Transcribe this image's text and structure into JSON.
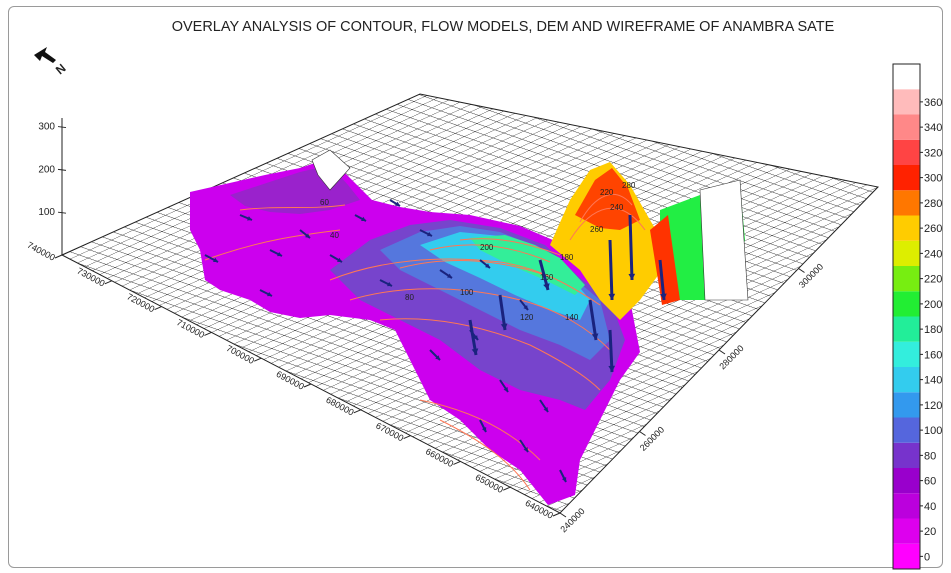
{
  "chart_data": {
    "type": "heatmap",
    "title": "OVERLAY ANALYSIS OF CONTOUR, FLOW MODELS, DEM AND WIREFRAME OF ANAMBRA SATE",
    "north_arrow_label": "N",
    "z_axis": {
      "ticks": [
        100,
        200,
        300
      ]
    },
    "y_axis": {
      "ticks": [
        640000,
        650000,
        660000,
        670000,
        680000,
        690000,
        700000,
        710000,
        720000,
        730000,
        740000
      ]
    },
    "x_axis": {
      "ticks": [
        240000,
        260000,
        280000,
        300000
      ]
    },
    "colorbar": {
      "labels": [
        "0",
        "20",
        "40",
        "60",
        "80",
        "100",
        "120",
        "140",
        "160",
        "180",
        "200",
        "220",
        "240",
        "260",
        "280",
        "300",
        "320",
        "340",
        "360"
      ],
      "colors": [
        "#ff00ff",
        "#dd00ee",
        "#bb00dd",
        "#9900cc",
        "#7733cc",
        "#5566dd",
        "#3399ee",
        "#33ccee",
        "#33eedd",
        "#22ee99",
        "#22ee33",
        "#77ee11",
        "#ddee00",
        "#ffcc00",
        "#ff7700",
        "#ff2200",
        "#ff4444",
        "#ff8888",
        "#ffbbbb",
        "#ffffff"
      ]
    },
    "contour_labels": [
      "40",
      "60",
      "80",
      "100",
      "120",
      "140",
      "160",
      "180",
      "200",
      "220",
      "240",
      "260",
      "280"
    ]
  }
}
